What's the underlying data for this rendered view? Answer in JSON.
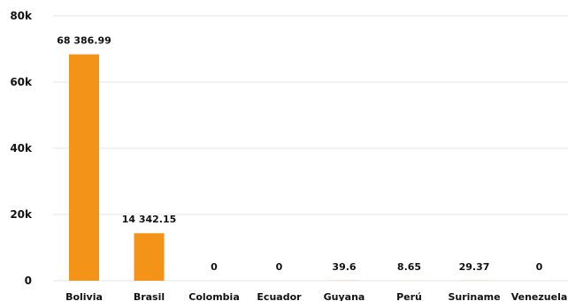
{
  "chart_data": {
    "type": "bar",
    "title": "",
    "xlabel": "",
    "ylabel": "",
    "categories": [
      "Bolivia",
      "Brasil",
      "Colombia",
      "Ecuador",
      "Guyana",
      "Perú",
      "Suriname",
      "Venezuela"
    ],
    "values": [
      68386.99,
      14342.15,
      0,
      0,
      39.6,
      8.65,
      29.37,
      0
    ],
    "value_labels": [
      "68 386.99",
      "14 342.15",
      "0",
      "0",
      "39.6",
      "8.65",
      "29.37",
      "0"
    ],
    "ylim": [
      0,
      80000
    ],
    "yticks": [
      0,
      20000,
      40000,
      60000,
      80000
    ],
    "ytick_labels": [
      "0",
      "20k",
      "40k",
      "60k",
      "80k"
    ],
    "grid": true,
    "legend": "none",
    "colors": {
      "bar": "#f39418",
      "grid": "#e6e6e6",
      "text": "#111111"
    }
  }
}
